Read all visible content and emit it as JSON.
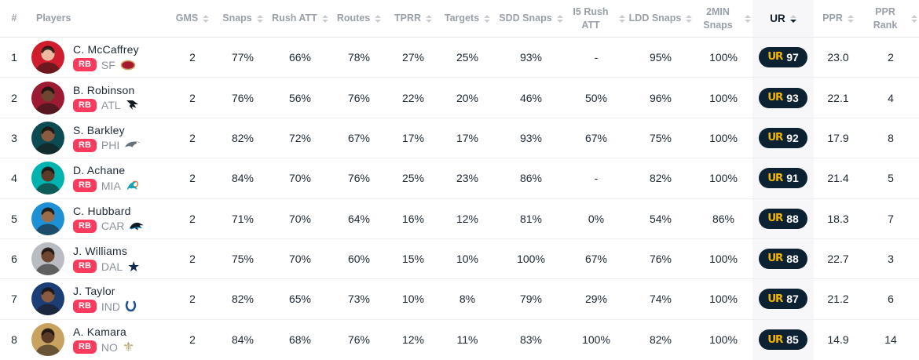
{
  "theme": {
    "position_badge_color": "#FB3A5D",
    "ur_pill_bg": "#0C2233",
    "ur_logo_color": "#F0B400",
    "ur_column_bg": "#F7F7F9",
    "header_text_color": "#9AA0A9",
    "body_text_color": "#1C2733"
  },
  "branding": {
    "ur_logo_text": "UR"
  },
  "table": {
    "columns": [
      {
        "key": "rank",
        "label": "#",
        "sortable": false
      },
      {
        "key": "players",
        "label": "Players",
        "sortable": false
      },
      {
        "key": "gms",
        "label": "GMS",
        "sortable": true
      },
      {
        "key": "snaps",
        "label": "Snaps",
        "sortable": true
      },
      {
        "key": "rush_att",
        "label": "Rush ATT",
        "sortable": true
      },
      {
        "key": "routes",
        "label": "Routes",
        "sortable": true
      },
      {
        "key": "tprr",
        "label": "TPRR",
        "sortable": true
      },
      {
        "key": "targets",
        "label": "Targets",
        "sortable": true
      },
      {
        "key": "sdd_snaps",
        "label": "SDD Snaps",
        "sortable": true
      },
      {
        "key": "i5_rush_att",
        "label": "I5 Rush ATT",
        "sortable": true
      },
      {
        "key": "ldd_snaps",
        "label": "LDD Snaps",
        "sortable": true
      },
      {
        "key": "min2_snaps",
        "label": "2MIN Snaps",
        "sortable": true
      },
      {
        "key": "ur",
        "label": "UR",
        "sortable": true,
        "sort_active": "desc"
      },
      {
        "key": "ppr",
        "label": "PPR",
        "sortable": true
      },
      {
        "key": "ppr_rank",
        "label": "PPR Rank",
        "sortable": true
      }
    ],
    "rows": [
      {
        "rank": "1",
        "name": "C. McCaffrey",
        "position": "RB",
        "team": "SF",
        "team_icon": "49ers-logo",
        "avatar_bg": "#D01D2D",
        "avatar_skin": "#EDB9A0",
        "gms": "2",
        "snaps": "77%",
        "rush_att": "66%",
        "routes": "78%",
        "tprr": "27%",
        "targets": "25%",
        "sdd_snaps": "93%",
        "i5_rush_att": "-",
        "ldd_snaps": "95%",
        "min2_snaps": "100%",
        "ur": "97",
        "ppr": "23.0",
        "ppr_rank": "2"
      },
      {
        "rank": "2",
        "name": "B. Robinson",
        "position": "RB",
        "team": "ATL",
        "team_icon": "falcons-logo",
        "avatar_bg": "#9D1B32",
        "avatar_skin": "#6E452F",
        "gms": "2",
        "snaps": "76%",
        "rush_att": "56%",
        "routes": "76%",
        "tprr": "22%",
        "targets": "20%",
        "sdd_snaps": "46%",
        "i5_rush_att": "50%",
        "ldd_snaps": "96%",
        "min2_snaps": "100%",
        "ur": "93",
        "ppr": "22.1",
        "ppr_rank": "4"
      },
      {
        "rank": "3",
        "name": "S. Barkley",
        "position": "RB",
        "team": "PHI",
        "team_icon": "eagles-logo",
        "avatar_bg": "#0B4B51",
        "avatar_skin": "#8A5B3F",
        "gms": "2",
        "snaps": "82%",
        "rush_att": "72%",
        "routes": "67%",
        "tprr": "17%",
        "targets": "17%",
        "sdd_snaps": "93%",
        "i5_rush_att": "67%",
        "ldd_snaps": "75%",
        "min2_snaps": "100%",
        "ur": "92",
        "ppr": "17.9",
        "ppr_rank": "8"
      },
      {
        "rank": "4",
        "name": "D. Achane",
        "position": "RB",
        "team": "MIA",
        "team_icon": "dolphins-logo",
        "avatar_bg": "#00B3AE",
        "avatar_skin": "#5C3A28",
        "gms": "2",
        "snaps": "84%",
        "rush_att": "70%",
        "routes": "76%",
        "tprr": "25%",
        "targets": "23%",
        "sdd_snaps": "86%",
        "i5_rush_att": "-",
        "ldd_snaps": "82%",
        "min2_snaps": "100%",
        "ur": "91",
        "ppr": "21.4",
        "ppr_rank": "5"
      },
      {
        "rank": "5",
        "name": "C. Hubbard",
        "position": "RB",
        "team": "CAR",
        "team_icon": "panthers-logo",
        "avatar_bg": "#1E90D6",
        "avatar_skin": "#9C6B4A",
        "gms": "2",
        "snaps": "71%",
        "rush_att": "70%",
        "routes": "64%",
        "tprr": "16%",
        "targets": "12%",
        "sdd_snaps": "81%",
        "i5_rush_att": "0%",
        "ldd_snaps": "54%",
        "min2_snaps": "86%",
        "ur": "88",
        "ppr": "18.3",
        "ppr_rank": "7"
      },
      {
        "rank": "6",
        "name": "J. Williams",
        "position": "RB",
        "team": "DAL",
        "team_icon": "cowboys-star",
        "avatar_bg": "#B9BDC1",
        "avatar_skin": "#6E452F",
        "gms": "2",
        "snaps": "75%",
        "rush_att": "70%",
        "routes": "60%",
        "tprr": "15%",
        "targets": "10%",
        "sdd_snaps": "100%",
        "i5_rush_att": "67%",
        "ldd_snaps": "76%",
        "min2_snaps": "100%",
        "ur": "88",
        "ppr": "22.7",
        "ppr_rank": "3"
      },
      {
        "rank": "7",
        "name": "J. Taylor",
        "position": "RB",
        "team": "IND",
        "team_icon": "colts-horseshoe",
        "avatar_bg": "#1B3E77",
        "avatar_skin": "#8A5B3F",
        "gms": "2",
        "snaps": "82%",
        "rush_att": "65%",
        "routes": "73%",
        "tprr": "10%",
        "targets": "8%",
        "sdd_snaps": "79%",
        "i5_rush_att": "29%",
        "ldd_snaps": "74%",
        "min2_snaps": "100%",
        "ur": "87",
        "ppr": "21.2",
        "ppr_rank": "6"
      },
      {
        "rank": "8",
        "name": "A. Kamara",
        "position": "RB",
        "team": "NO",
        "team_icon": "saints-fleur-de-lis",
        "avatar_bg": "#C8A25F",
        "avatar_skin": "#5C3A28",
        "gms": "2",
        "snaps": "84%",
        "rush_att": "68%",
        "routes": "76%",
        "tprr": "12%",
        "targets": "11%",
        "sdd_snaps": "83%",
        "i5_rush_att": "100%",
        "ldd_snaps": "82%",
        "min2_snaps": "100%",
        "ur": "85",
        "ppr": "14.9",
        "ppr_rank": "14"
      }
    ]
  }
}
